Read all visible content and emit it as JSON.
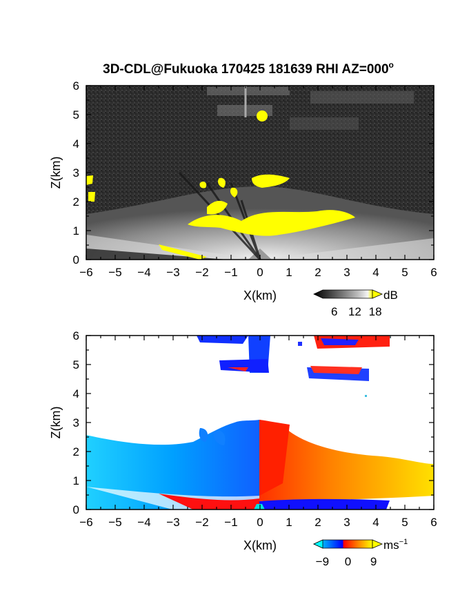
{
  "figure": {
    "title": "3D-CDL@Fukuoka 170425 181639 RHI AZ=000",
    "title_sup": "o"
  },
  "chart_data": [
    {
      "type": "heatmap",
      "quantity": "reflectivity",
      "xlabel": "X(km)",
      "ylabel": "Z(km)",
      "xlim": [
        -6,
        6
      ],
      "ylim": [
        0,
        6
      ],
      "xticks": [
        -6,
        -5,
        -4,
        -3,
        -2,
        -1,
        0,
        1,
        2,
        3,
        4,
        5,
        6
      ],
      "yticks": [
        0,
        1,
        2,
        3,
        4,
        5,
        6
      ],
      "colorbar": {
        "unit": "dB",
        "ticks": [
          6,
          12,
          18
        ],
        "range": [
          0,
          20
        ],
        "colors": [
          "#000000",
          "#3a3a3a",
          "#7a7a7a",
          "#bcbcbc",
          "#f4f4f4",
          "#ffff00"
        ]
      },
      "background_color": "#2f2f2f",
      "features": [
        {
          "kind": "echo_fan",
          "description_level": "gray",
          "x_range": [
            -6,
            6
          ],
          "z_range": [
            0,
            2
          ]
        },
        {
          "kind": "strong_echo",
          "color": "#ffff00",
          "x_range": [
            -2.5,
            3.1
          ],
          "z_range": [
            1.0,
            1.6
          ]
        },
        {
          "kind": "strong_echo",
          "color": "#ffff00",
          "x_range": [
            -0.3,
            1.0
          ],
          "z_range": [
            2.4,
            2.9
          ]
        },
        {
          "kind": "strong_echo",
          "color": "#ffff00",
          "x_range": [
            -2.2,
            -1.0
          ],
          "z_range": [
            1.7,
            2.8
          ]
        },
        {
          "kind": "strong_echo",
          "color": "#ffff00",
          "x_range": [
            -0.2,
            0.2
          ],
          "z_range": [
            4.9,
            5.1
          ]
        },
        {
          "kind": "strong_echo",
          "color": "#ffff00",
          "x_range": [
            -6,
            -5.8
          ],
          "z_range": [
            2.0,
            2.8
          ]
        }
      ]
    },
    {
      "type": "heatmap",
      "quantity": "radial velocity",
      "xlabel": "X(km)",
      "ylabel": "Z(km)",
      "xlim": [
        -6,
        6
      ],
      "ylim": [
        0,
        6
      ],
      "xticks": [
        -6,
        -5,
        -4,
        -3,
        -2,
        -1,
        0,
        1,
        2,
        3,
        4,
        5,
        6
      ],
      "yticks": [
        0,
        1,
        2,
        3,
        4,
        5,
        6
      ],
      "colorbar": {
        "unit": "ms",
        "unit_sup": "−1",
        "ticks": [
          -9,
          0,
          9
        ],
        "tick_labels": [
          "−9",
          "0",
          "9"
        ],
        "range": [
          -12,
          12
        ],
        "colors": [
          "#00ffff",
          "#0080ff",
          "#0000ff",
          "#ff0000",
          "#ff8000",
          "#ffff00"
        ]
      },
      "background_color": "#ffffff",
      "features": [
        {
          "kind": "negative_velocity",
          "value_range": [
            -9,
            -3
          ],
          "x_range": [
            -6,
            0
          ],
          "z_range": [
            0.2,
            2.9
          ]
        },
        {
          "kind": "positive_velocity",
          "value_range": [
            3,
            9
          ],
          "x_range": [
            0,
            6
          ],
          "z_range": [
            0.3,
            2.8
          ]
        },
        {
          "kind": "near_ground_band",
          "value_range": [
            -6,
            6
          ],
          "x_range": [
            -3.5,
            4.5
          ],
          "z_range": [
            0,
            0.4
          ]
        },
        {
          "kind": "upper_layer",
          "value_range": [
            -9,
            9
          ],
          "x_range": [
            -2.2,
            0.3
          ],
          "z_range": [
            4.8,
            6.0
          ]
        },
        {
          "kind": "upper_layer",
          "value_range": [
            -9,
            9
          ],
          "x_range": [
            1.6,
            4.5
          ],
          "z_range": [
            4.4,
            6.0
          ]
        }
      ]
    }
  ]
}
